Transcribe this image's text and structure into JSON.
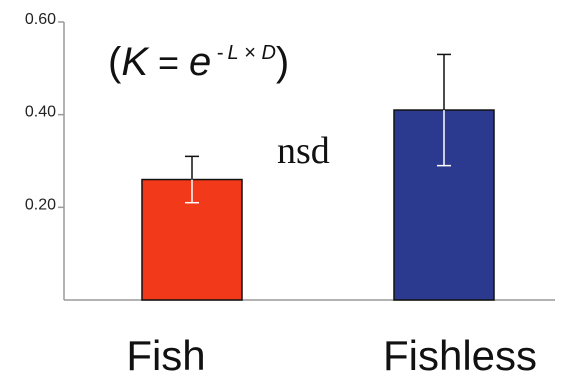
{
  "chart_data": {
    "type": "bar",
    "categories": [
      "Fish",
      "Fishless"
    ],
    "values": [
      0.26,
      0.41
    ],
    "error": [
      0.05,
      0.12
    ],
    "colors": [
      "#f23a1a",
      "#2b3a8e"
    ],
    "ylim": [
      0.0,
      0.6
    ],
    "yticks": [
      {
        "value": 0.2,
        "label": "0.20"
      },
      {
        "value": 0.4,
        "label": "0.40"
      },
      {
        "value": 0.6,
        "label": "0.60"
      }
    ],
    "formula": {
      "open": "(",
      "k": "K",
      "equals": " = ",
      "e": "e",
      "minus": " -",
      "l": "L",
      "times": " × ",
      "d": "D",
      "close": ")"
    },
    "annotation": "nsd"
  }
}
